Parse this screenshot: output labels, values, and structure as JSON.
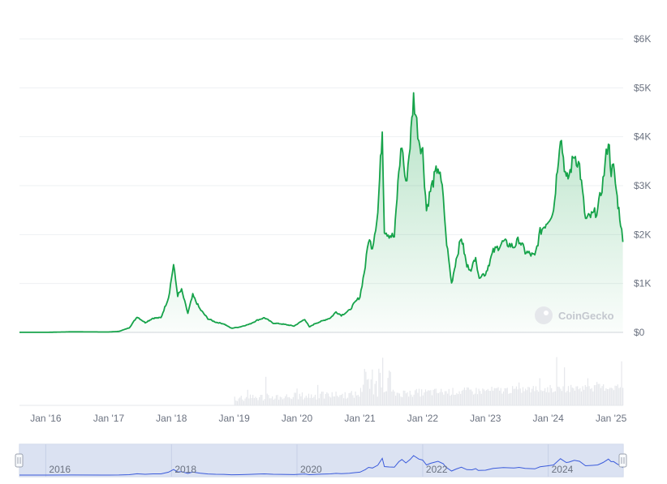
{
  "chart_data": {
    "type": "area",
    "title": "",
    "xlabel": "",
    "ylabel": "",
    "ylim": [
      0,
      6000
    ],
    "y_axis_position": "right",
    "y_ticks": [
      0,
      1000,
      2000,
      3000,
      4000,
      5000,
      6000
    ],
    "y_tick_labels": [
      "$0",
      "$1K",
      "$2K",
      "$3K",
      "$4K",
      "$5K",
      "$6K"
    ],
    "x_ticks": [
      "2016-01-01",
      "2017-01-01",
      "2018-01-01",
      "2019-01-01",
      "2020-01-01",
      "2021-01-01",
      "2022-01-01",
      "2023-01-01",
      "2024-01-01",
      "2025-01-01"
    ],
    "x_tick_labels": [
      "Jan '16",
      "Jan '17",
      "Jan '18",
      "Jan '19",
      "Jan '20",
      "Jan '21",
      "Jan '22",
      "Jan '23",
      "Jan '24",
      "Jan '25"
    ],
    "grid": true,
    "colors": {
      "line": "#16a34a",
      "area_top": "#16a34a",
      "volume": "#e5e7eb",
      "navigator_fill": "#dbe2f3",
      "navigator_line": "#3b5bdb"
    },
    "series": [
      {
        "x": [
          "2015-08-01",
          "2016-01-01",
          "2016-06-01",
          "2017-01-01",
          "2017-03-01",
          "2017-05-01",
          "2017-06-15",
          "2017-08-01",
          "2017-09-15",
          "2017-11-01",
          "2017-12-15",
          "2018-01-13",
          "2018-02-06",
          "2018-03-01",
          "2018-04-06",
          "2018-05-05",
          "2018-06-15",
          "2018-08-01",
          "2018-09-15",
          "2018-11-01",
          "2018-12-15",
          "2019-02-01",
          "2019-04-01",
          "2019-05-15",
          "2019-06-25",
          "2019-08-15",
          "2019-10-01",
          "2019-12-15",
          "2020-02-15",
          "2020-03-13",
          "2020-04-15",
          "2020-06-01",
          "2020-07-15",
          "2020-08-15",
          "2020-09-15",
          "2020-11-01",
          "2020-12-01",
          "2021-01-01",
          "2021-02-01",
          "2021-02-20",
          "2021-03-15",
          "2021-04-15",
          "2021-05-11",
          "2021-05-23",
          "2021-06-20",
          "2021-07-20",
          "2021-08-15",
          "2021-09-02",
          "2021-09-25",
          "2021-10-20",
          "2021-11-09",
          "2021-12-10",
          "2022-01-01",
          "2022-01-23",
          "2022-02-15",
          "2022-03-31",
          "2022-05-01",
          "2022-05-15",
          "2022-06-18",
          "2022-07-15",
          "2022-08-14",
          "2022-09-15",
          "2022-10-15",
          "2022-11-05",
          "2022-11-20",
          "2023-01-01",
          "2023-02-15",
          "2023-04-15",
          "2023-05-15",
          "2023-06-15",
          "2023-07-15",
          "2023-08-20",
          "2023-10-15",
          "2023-11-15",
          "2024-01-01",
          "2024-02-01",
          "2024-03-12",
          "2024-04-15",
          "2024-05-01",
          "2024-06-01",
          "2024-07-01",
          "2024-08-05",
          "2024-09-15",
          "2024-10-15",
          "2024-11-15",
          "2024-12-16",
          "2025-01-01",
          "2025-01-15",
          "2025-02-05",
          "2025-02-25",
          "2025-03-10"
        ],
        "y": [
          1,
          1,
          12,
          8,
          20,
          95,
          320,
          200,
          290,
          300,
          720,
          1380,
          760,
          860,
          390,
          760,
          480,
          280,
          210,
          175,
          85,
          110,
          170,
          250,
          300,
          190,
          175,
          130,
          270,
          110,
          180,
          240,
          300,
          420,
          350,
          450,
          600,
          730,
          1350,
          1900,
          1750,
          2450,
          4150,
          2100,
          2000,
          1950,
          3300,
          3850,
          3000,
          3850,
          4800,
          3950,
          3700,
          2500,
          2900,
          3400,
          2800,
          2000,
          1000,
          1500,
          1950,
          1350,
          1300,
          1600,
          1150,
          1200,
          1650,
          1850,
          1800,
          1750,
          1900,
          1650,
          1550,
          2050,
          2300,
          2500,
          4050,
          3100,
          3200,
          3650,
          3400,
          2300,
          2400,
          2500,
          3100,
          3950,
          3300,
          3350,
          2750,
          2250,
          1850
        ]
      }
    ],
    "navigator": {
      "labels": [
        "2016",
        "2018",
        "2020",
        "2022",
        "2024"
      ],
      "label_dates": [
        "2016-01-01",
        "2018-01-01",
        "2020-01-01",
        "2022-01-01",
        "2024-01-01"
      ]
    },
    "watermark": "CoinGecko"
  }
}
